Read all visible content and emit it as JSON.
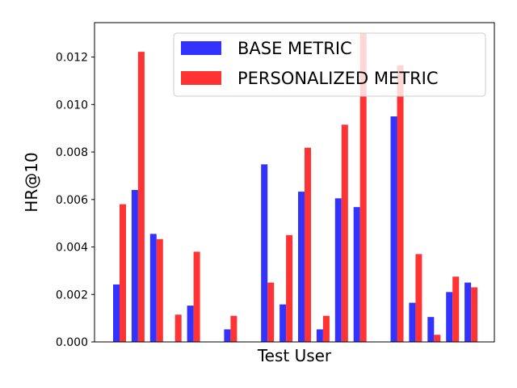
{
  "chart_data": {
    "type": "bar",
    "title": "",
    "xlabel": "Test User",
    "ylabel": "HR@10",
    "ylim": [
      0,
      0.01345
    ],
    "yticks": [
      "0.000",
      "0.002",
      "0.004",
      "0.006",
      "0.008",
      "0.010",
      "0.012"
    ],
    "ytick_values": [
      0,
      0.002,
      0.004,
      0.006,
      0.008,
      0.01,
      0.012
    ],
    "show_xticks": false,
    "grid": false,
    "legend_position": "top-right",
    "series": [
      {
        "name": "BASE METRIC",
        "color": "#3333ff",
        "values": [
          0.00242,
          0.0064,
          0.00455,
          0.0,
          0.00153,
          0.0,
          0.00053,
          0.0,
          0.00748,
          0.00158,
          0.00633,
          0.00053,
          0.00605,
          0.00568,
          0.0,
          0.0095,
          0.00165,
          0.00105,
          0.0021,
          0.0025
        ]
      },
      {
        "name": "PERSONALIZED METRIC",
        "color": "#ff3333",
        "values": [
          0.0058,
          0.01222,
          0.00433,
          0.00115,
          0.0038,
          0.0,
          0.0011,
          0.0,
          0.0025,
          0.0045,
          0.00818,
          0.0011,
          0.00915,
          0.013,
          0.0,
          0.01165,
          0.0037,
          0.0003,
          0.00275,
          0.0023
        ]
      }
    ]
  }
}
